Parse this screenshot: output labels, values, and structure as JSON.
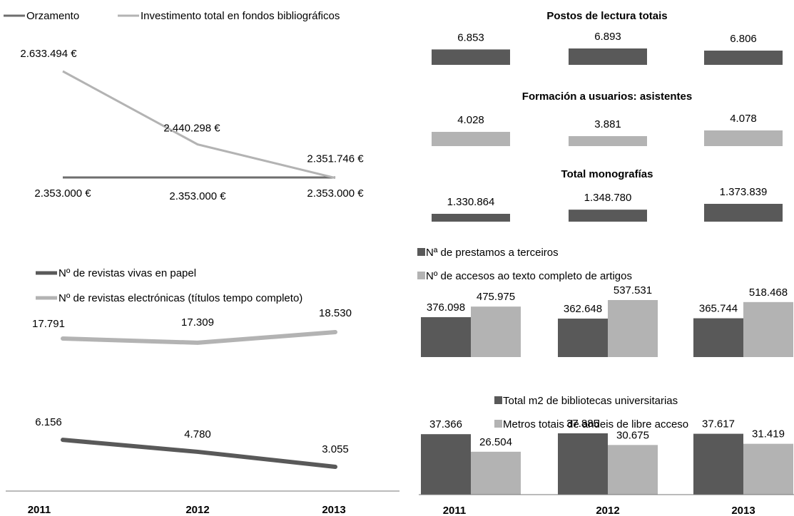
{
  "colors": {
    "dark": "#595959",
    "light": "#b3b3b3",
    "axis": "#777777"
  },
  "years": [
    "2011",
    "2012",
    "2013"
  ],
  "chart_data": [
    {
      "id": "budget",
      "type": "line",
      "categories": [
        "2011",
        "2012",
        "2013"
      ],
      "series": [
        {
          "name": "Orzamento",
          "color": "#6e6e6e",
          "values": [
            2353000,
            2353000,
            2353000
          ],
          "labels": [
            "2.353.000 €",
            "2.353.000 €",
            "2.353.000 €"
          ]
        },
        {
          "name": "Investimento total en fondos bibliográficos",
          "color": "#b3b3b3",
          "values": [
            2633494,
            2440298,
            2351746
          ],
          "labels": [
            "2.633.494 €",
            "2.440.298 €",
            "2.351.746 €"
          ]
        }
      ]
    },
    {
      "id": "reading",
      "type": "bar",
      "title": "Postos de lectura totais",
      "categories": [
        "2011",
        "2012",
        "2013"
      ],
      "color": "#595959",
      "values": [
        6853,
        6893,
        6806
      ],
      "labels": [
        "6.853",
        "6.893",
        "6.806"
      ]
    },
    {
      "id": "training",
      "type": "bar",
      "title": "Formación a usuarios: asistentes",
      "categories": [
        "2011",
        "2012",
        "2013"
      ],
      "color": "#b3b3b3",
      "values": [
        4028,
        3881,
        4078
      ],
      "labels": [
        "4.028",
        "3.881",
        "4.078"
      ]
    },
    {
      "id": "monographs",
      "type": "bar",
      "title": "Total monografías",
      "categories": [
        "2011",
        "2012",
        "2013"
      ],
      "color": "#595959",
      "values": [
        1330864,
        1348780,
        1373839
      ],
      "labels": [
        "1.330.864",
        "1.348.780",
        "1.373.839"
      ]
    },
    {
      "id": "journals",
      "type": "line",
      "categories": [
        "2011",
        "2012",
        "2013"
      ],
      "series": [
        {
          "name": "Nº de revistas vivas en papel",
          "color": "#595959",
          "values": [
            6156,
            4780,
            3055
          ],
          "labels": [
            "6.156",
            "4.780",
            "3.055"
          ]
        },
        {
          "name": "Nº de revistas electrónicas (títulos tempo completo)",
          "color": "#b3b3b3",
          "values": [
            17791,
            17309,
            18530
          ],
          "labels": [
            "17.791",
            "17.309",
            "18.530"
          ]
        }
      ]
    },
    {
      "id": "loans",
      "type": "bar",
      "categories": [
        "2011",
        "2012",
        "2013"
      ],
      "series": [
        {
          "name": "Nª de prestamos a terceiros",
          "color": "#595959",
          "values": [
            376098,
            362648,
            365744
          ],
          "labels": [
            "376.098",
            "362.648",
            "365.744"
          ]
        },
        {
          "name": "Nº de accesos ao texto completo de artigos",
          "color": "#b3b3b3",
          "values": [
            475975,
            537531,
            518468
          ],
          "labels": [
            "475.975",
            "537.531",
            "518.468"
          ]
        }
      ]
    },
    {
      "id": "space",
      "type": "bar",
      "categories": [
        "2011",
        "2012",
        "2013"
      ],
      "series": [
        {
          "name": "Total m2 de bibliotecas universitarias",
          "color": "#595959",
          "values": [
            37366,
            37885,
            37617
          ],
          "labels": [
            "37.366",
            "37.885",
            "37.617"
          ]
        },
        {
          "name": "Metros totais de andeis de libre acceso",
          "color": "#b3b3b3",
          "values": [
            26504,
            30675,
            31419
          ],
          "labels": [
            "26.504",
            "30.675",
            "31.419"
          ]
        }
      ]
    }
  ]
}
